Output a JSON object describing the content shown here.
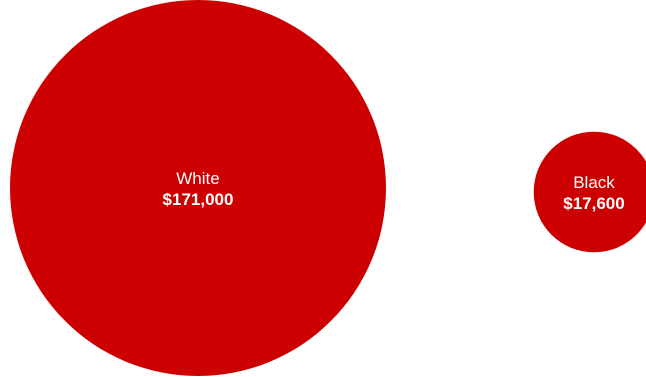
{
  "chart_data": {
    "type": "bubble",
    "categories": [
      "White",
      "Black"
    ],
    "values": [
      171000,
      17600
    ],
    "value_labels": [
      "$171,000",
      "$17,600"
    ],
    "colors": {
      "bubble": "#cc0000",
      "text": "#ffffff",
      "background": "#ffffff"
    },
    "legend": "none",
    "grid": false
  }
}
